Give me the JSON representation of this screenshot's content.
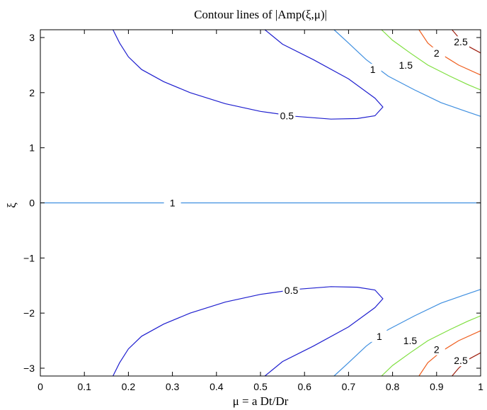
{
  "chart_data": {
    "type": "contour",
    "title": "Contour lines of |Amp(ξ,μ)|",
    "xlabel": "μ = a Dt/Dr",
    "ylabel": "ξ",
    "xlim": [
      0,
      1
    ],
    "ylim": [
      -3.1416,
      3.1416
    ],
    "xticks": [
      0,
      0.1,
      0.2,
      0.3,
      0.4,
      0.5,
      0.6,
      0.7,
      0.8,
      0.9,
      1
    ],
    "xticklabels": [
      "0",
      "0.1",
      "0.2",
      "0.3",
      "0.4",
      "0.5",
      "0.6",
      "0.7",
      "0.8",
      "0.9",
      "1"
    ],
    "yticks": [
      3,
      2,
      1,
      0,
      -1,
      -2,
      -3
    ],
    "yticklabels": [
      "3",
      "2",
      "1",
      "0",
      "−1",
      "−2",
      "−3"
    ],
    "grid": false,
    "levels": [
      {
        "level": 0.5,
        "label": "0.5",
        "color": "#1f1fcf",
        "curves": [
          [
            [
              0.165,
              3.1416
            ],
            [
              0.18,
              2.9
            ],
            [
              0.2,
              2.65
            ],
            [
              0.23,
              2.42
            ],
            [
              0.28,
              2.2
            ],
            [
              0.34,
              2.0
            ],
            [
              0.42,
              1.8
            ],
            [
              0.5,
              1.66
            ],
            [
              0.58,
              1.57
            ],
            [
              0.66,
              1.52
            ],
            [
              0.72,
              1.53
            ],
            [
              0.76,
              1.58
            ],
            [
              0.778,
              1.74
            ],
            [
              0.76,
              1.9
            ],
            [
              0.7,
              2.25
            ],
            [
              0.62,
              2.6
            ],
            [
              0.55,
              2.88
            ],
            [
              0.51,
              3.1416
            ]
          ],
          [
            [
              0.165,
              -3.1416
            ],
            [
              0.18,
              -2.9
            ],
            [
              0.2,
              -2.65
            ],
            [
              0.23,
              -2.42
            ],
            [
              0.28,
              -2.2
            ],
            [
              0.34,
              -2.0
            ],
            [
              0.42,
              -1.8
            ],
            [
              0.5,
              -1.66
            ],
            [
              0.58,
              -1.57
            ],
            [
              0.66,
              -1.52
            ],
            [
              0.72,
              -1.53
            ],
            [
              0.76,
              -1.58
            ],
            [
              0.778,
              -1.74
            ],
            [
              0.76,
              -1.9
            ],
            [
              0.7,
              -2.25
            ],
            [
              0.62,
              -2.6
            ],
            [
              0.55,
              -2.88
            ],
            [
              0.51,
              -3.1416
            ]
          ]
        ],
        "labels": [
          {
            "x": 0.56,
            "y": 1.58,
            "text": "0.5"
          },
          {
            "x": 0.57,
            "y": -1.59,
            "text": "0.5"
          }
        ]
      },
      {
        "level": 1,
        "label": "1",
        "color": "#3f8fe0",
        "curves": [
          [
            [
              0,
              0
            ],
            [
              1,
              0
            ]
          ],
          [
            [
              0.667,
              3.1416
            ],
            [
              0.7,
              2.9
            ],
            [
              0.74,
              2.6
            ],
            [
              0.79,
              2.3
            ],
            [
              0.85,
              2.05
            ],
            [
              0.91,
              1.82
            ],
            [
              0.96,
              1.68
            ],
            [
              1.0,
              1.57
            ]
          ],
          [
            [
              0.667,
              -3.1416
            ],
            [
              0.7,
              -2.9
            ],
            [
              0.74,
              -2.6
            ],
            [
              0.79,
              -2.3
            ],
            [
              0.85,
              -2.05
            ],
            [
              0.91,
              -1.82
            ],
            [
              0.96,
              -1.68
            ],
            [
              1.0,
              -1.57
            ]
          ]
        ],
        "labels": [
          {
            "x": 0.3,
            "y": 0.0,
            "text": "1"
          },
          {
            "x": 0.755,
            "y": 2.42,
            "text": "1"
          },
          {
            "x": 0.77,
            "y": -2.42,
            "text": "1"
          }
        ]
      },
      {
        "level": 1.5,
        "label": "1.5",
        "color": "#7fdf3f",
        "curves": [
          [
            [
              0.775,
              3.1416
            ],
            [
              0.8,
              2.95
            ],
            [
              0.84,
              2.72
            ],
            [
              0.88,
              2.5
            ],
            [
              0.93,
              2.3
            ],
            [
              0.97,
              2.15
            ],
            [
              1.0,
              2.05
            ]
          ],
          [
            [
              0.775,
              -3.1416
            ],
            [
              0.8,
              -2.95
            ],
            [
              0.84,
              -2.72
            ],
            [
              0.88,
              -2.5
            ],
            [
              0.93,
              -2.3
            ],
            [
              0.97,
              -2.15
            ],
            [
              1.0,
              -2.05
            ]
          ]
        ],
        "labels": [
          {
            "x": 0.83,
            "y": 2.5,
            "text": "1.5"
          },
          {
            "x": 0.84,
            "y": -2.5,
            "text": "1.5"
          }
        ]
      },
      {
        "level": 2,
        "label": "2",
        "color": "#ef5f1f",
        "curves": [
          [
            [
              0.86,
              3.1416
            ],
            [
              0.88,
              2.9
            ],
            [
              0.91,
              2.7
            ],
            [
              0.95,
              2.5
            ],
            [
              1.0,
              2.32
            ]
          ],
          [
            [
              0.86,
              -3.1416
            ],
            [
              0.88,
              -2.9
            ],
            [
              0.91,
              -2.7
            ],
            [
              0.95,
              -2.5
            ],
            [
              1.0,
              -2.32
            ]
          ]
        ],
        "labels": [
          {
            "x": 0.9,
            "y": 2.72,
            "text": "2"
          },
          {
            "x": 0.9,
            "y": -2.66,
            "text": "2"
          }
        ]
      },
      {
        "level": 2.5,
        "label": "2.5",
        "color": "#9f1f0f",
        "curves": [
          [
            [
              0.935,
              3.1416
            ],
            [
              0.95,
              3.0
            ],
            [
              0.97,
              2.85
            ],
            [
              1.0,
              2.72
            ]
          ],
          [
            [
              0.935,
              -3.1416
            ],
            [
              0.95,
              -3.0
            ],
            [
              0.97,
              -2.85
            ],
            [
              1.0,
              -2.72
            ]
          ]
        ],
        "labels": [
          {
            "x": 0.955,
            "y": 2.92,
            "text": "2.5"
          },
          {
            "x": 0.955,
            "y": -2.86,
            "text": "2.5"
          }
        ]
      }
    ]
  }
}
